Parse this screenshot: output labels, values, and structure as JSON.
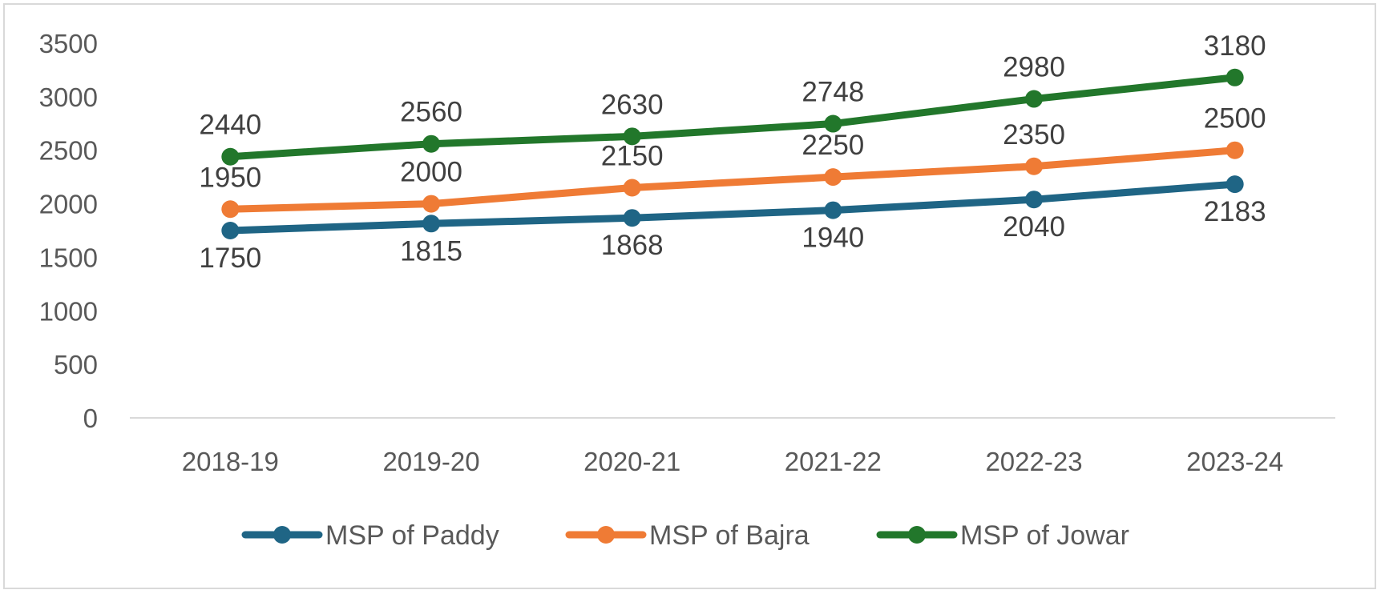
{
  "chart_data": {
    "type": "line",
    "categories": [
      "2018-19",
      "2019-20",
      "2020-21",
      "2021-22",
      "2022-23",
      "2023-24"
    ],
    "ylim": [
      0,
      3500
    ],
    "yticks": [
      0,
      500,
      1000,
      1500,
      2000,
      2500,
      3000,
      3500
    ],
    "grid": false,
    "legend_position": "bottom",
    "series": [
      {
        "name": "MSP of Paddy",
        "color": "#1f6585",
        "values": [
          1750,
          1815,
          1868,
          1940,
          2040,
          2183
        ],
        "label_side": [
          "below",
          "below",
          "below",
          "below",
          "below",
          "below"
        ]
      },
      {
        "name": "MSP of Bajra",
        "color": "#ef7b35",
        "values": [
          1950,
          2000,
          2150,
          2250,
          2350,
          2500
        ],
        "label_side": [
          "above",
          "above",
          "above",
          "above",
          "above",
          "above"
        ]
      },
      {
        "name": "MSP of Jowar",
        "color": "#22772b",
        "values": [
          2440,
          2560,
          2630,
          2748,
          2980,
          3180
        ],
        "label_side": [
          "above",
          "above",
          "above",
          "above",
          "above",
          "above"
        ]
      }
    ]
  }
}
